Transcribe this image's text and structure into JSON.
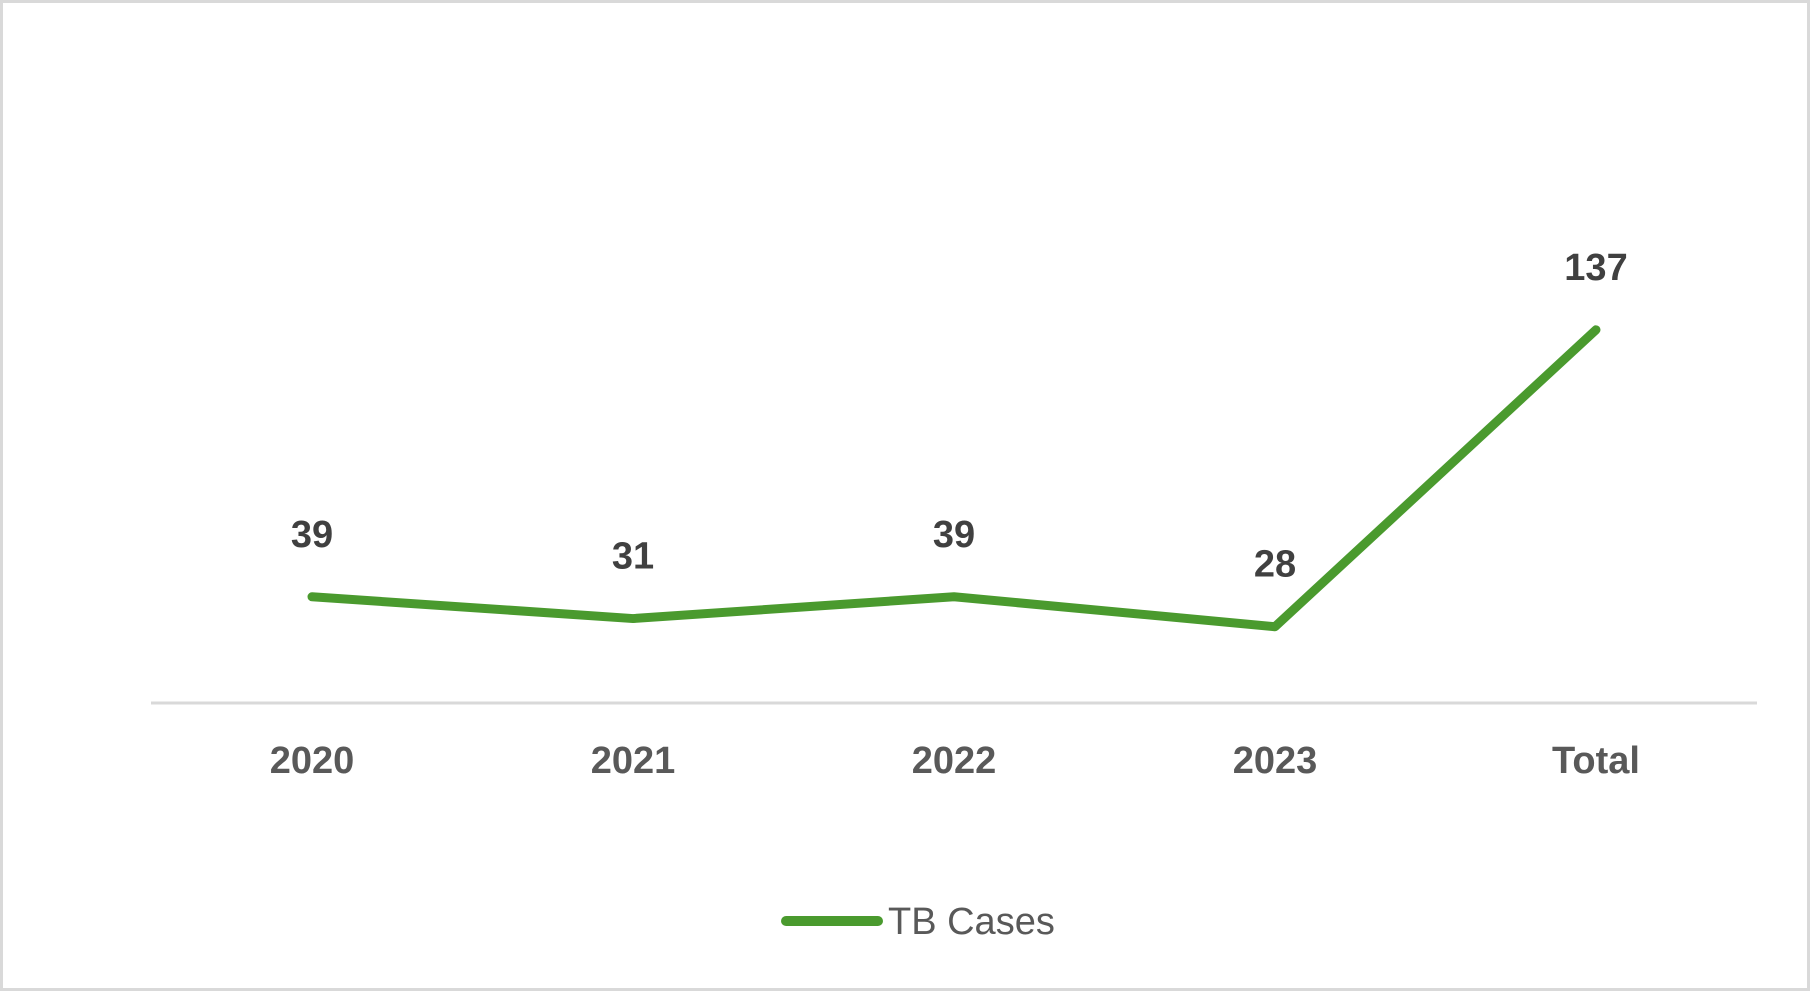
{
  "chart_data": {
    "type": "line",
    "categories": [
      "2020",
      "2021",
      "2022",
      "2023",
      "Total"
    ],
    "series": [
      {
        "name": "TB Cases",
        "values": [
          39,
          31,
          39,
          28,
          137
        ],
        "color": "#4a9a2e"
      }
    ],
    "data_labels": [
      "39",
      "31",
      "39",
      "28",
      "137"
    ],
    "ylim": [
      0,
      160
    ],
    "grid": false,
    "legend_position": "bottom",
    "axis_color": "#d9d9d9"
  }
}
